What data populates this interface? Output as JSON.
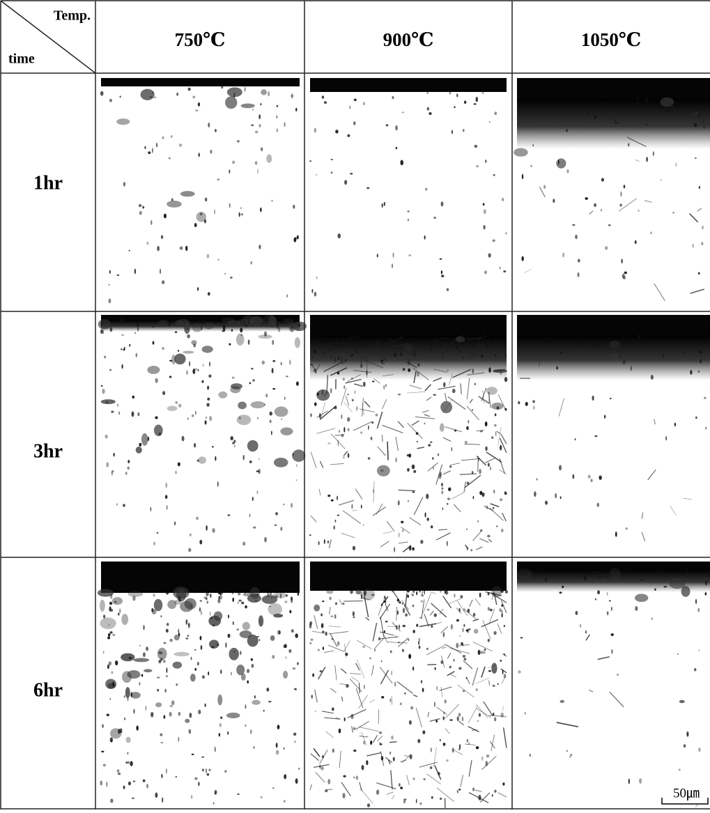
{
  "header": {
    "corner": {
      "top": "Temp.",
      "bottom": "time"
    },
    "columns": [
      "750℃",
      "900℃",
      "1050℃"
    ]
  },
  "rows": [
    {
      "label": "1hr"
    },
    {
      "label": "3hr"
    },
    {
      "label": "6hr"
    }
  ],
  "scale_bar": "50㎛"
}
